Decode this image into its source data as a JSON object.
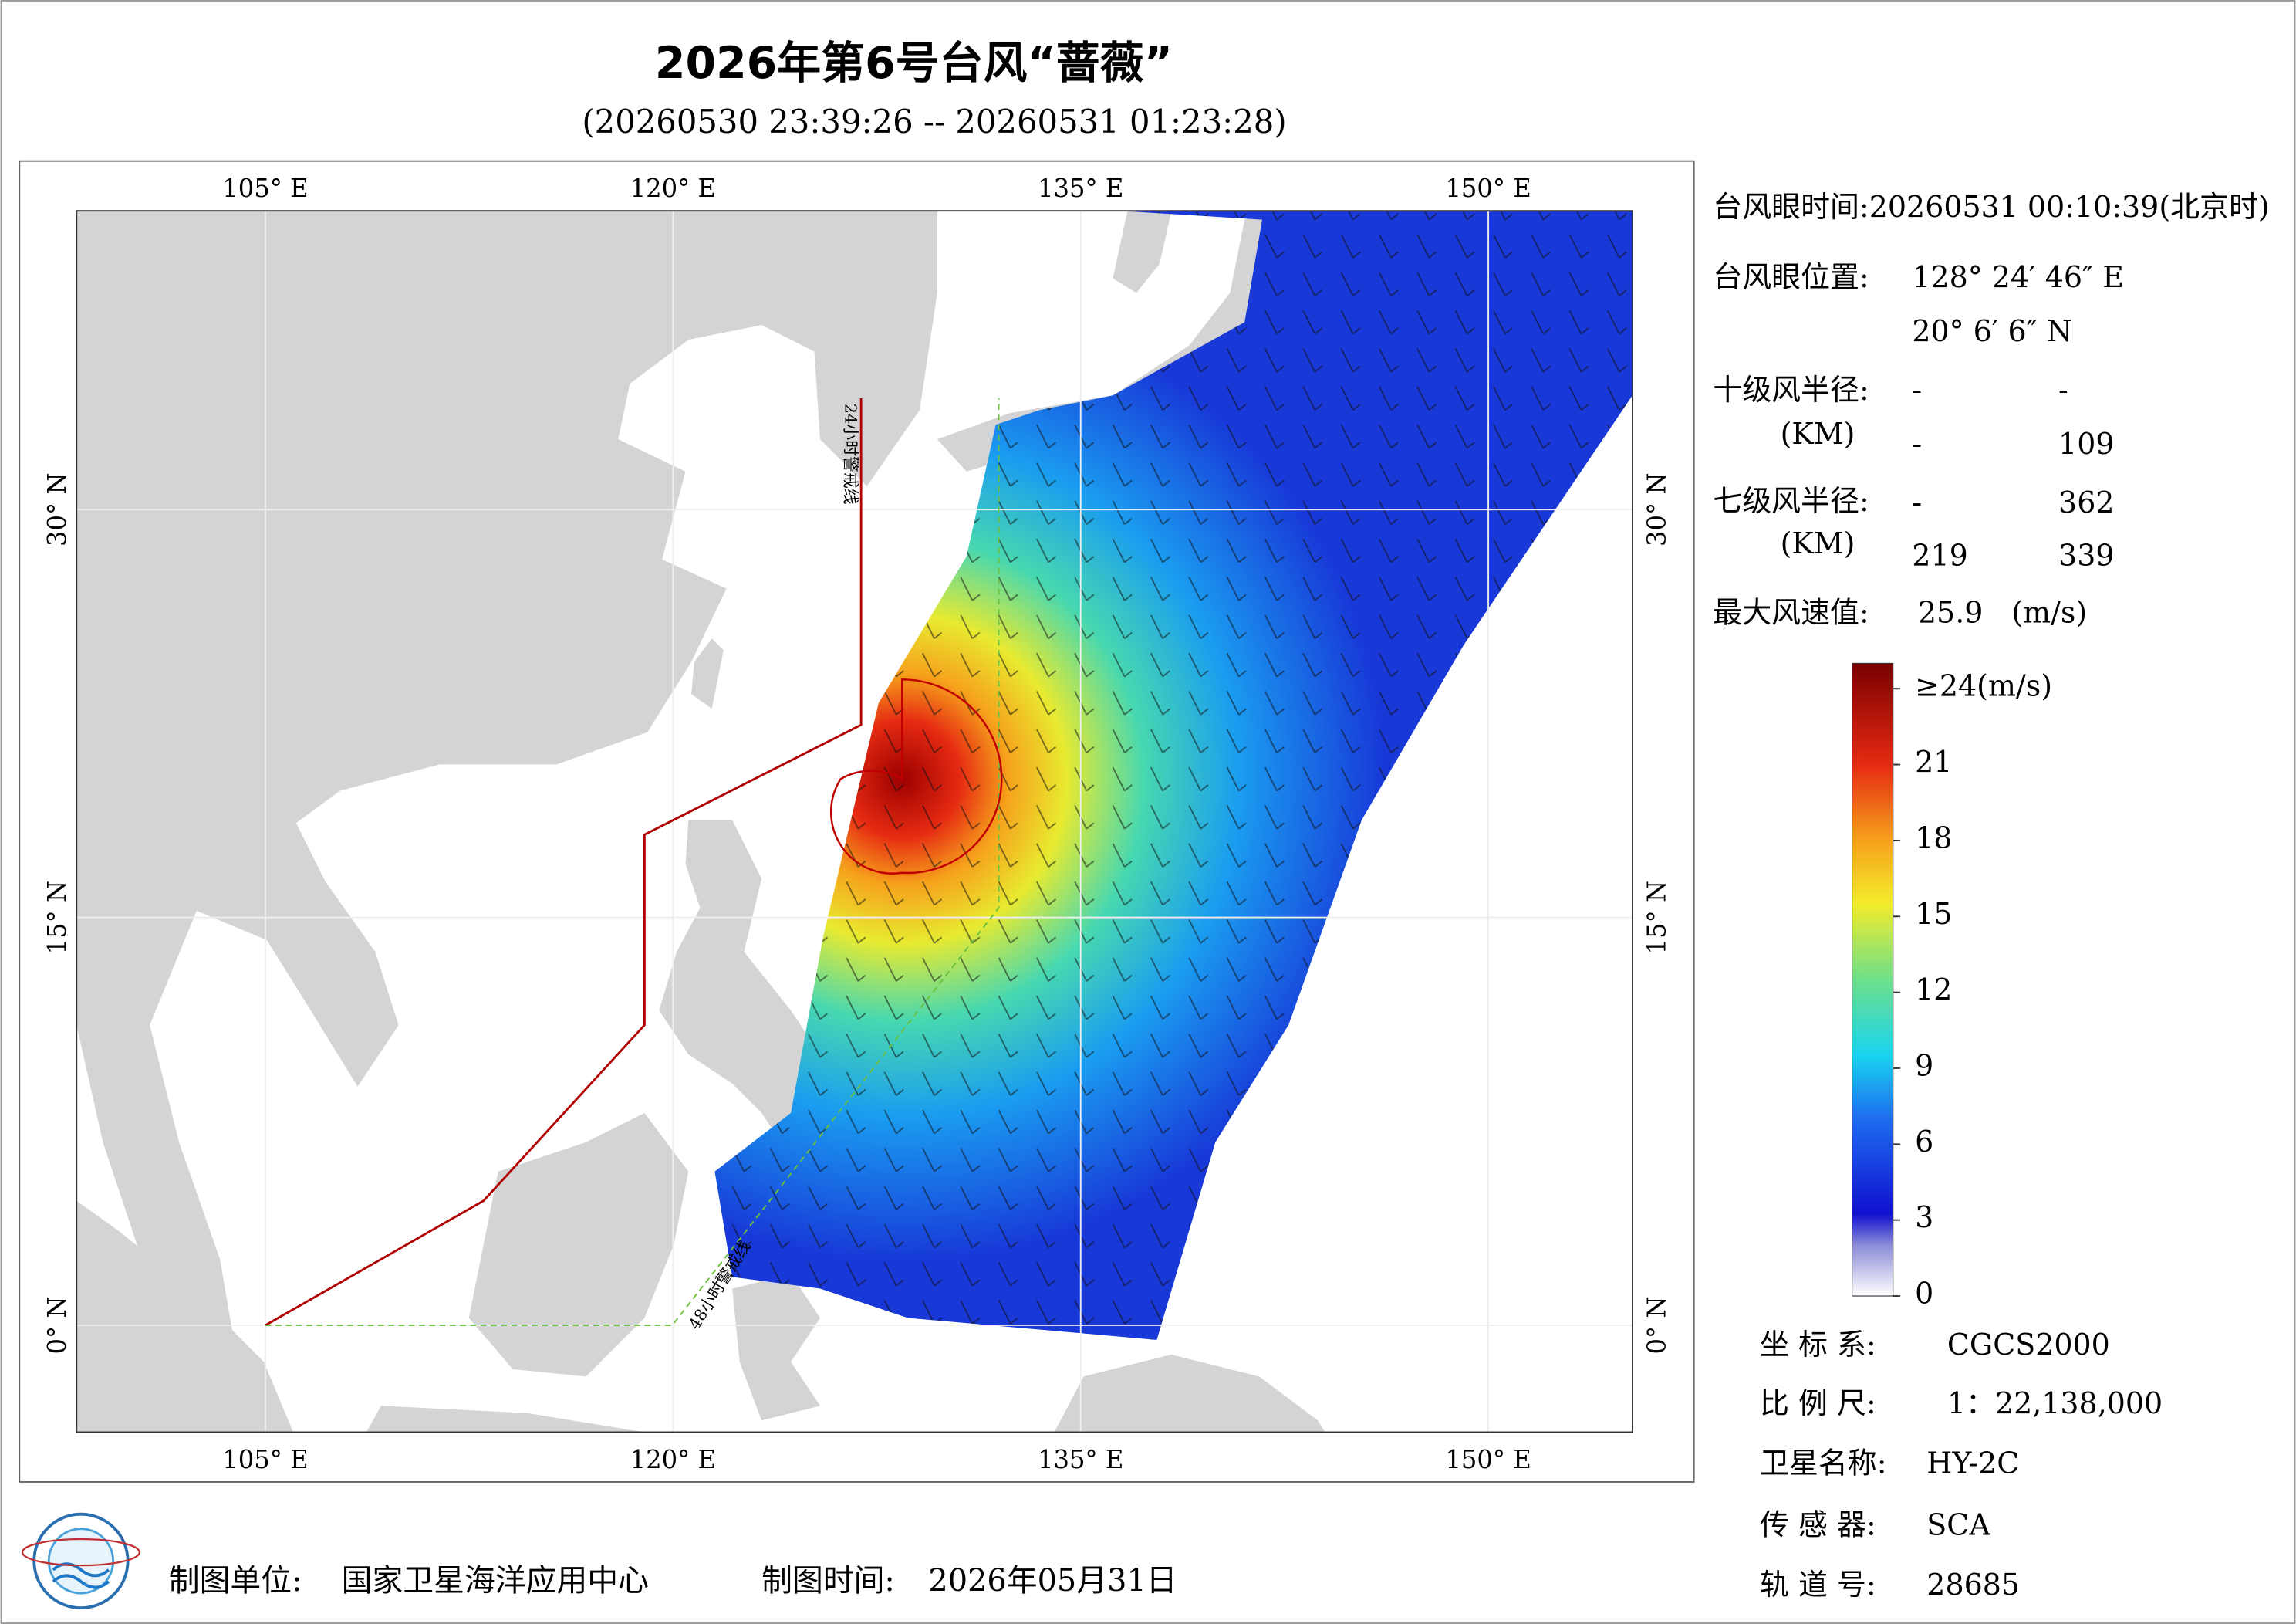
{
  "header": {
    "title": "2026年第6号台风“蔷薇”",
    "subtitle": "(20260530 23:39:26 -- 20260531 01:23:28)"
  },
  "map": {
    "lon_grid": [
      {
        "value": 105,
        "label": "105° E"
      },
      {
        "value": 120,
        "label": "120° E"
      },
      {
        "value": 135,
        "label": "135° E"
      },
      {
        "value": 150,
        "label": "150° E"
      }
    ],
    "lat_grid": [
      {
        "value": 0,
        "label": "0° N"
      },
      {
        "value": 15,
        "label": "15° N"
      },
      {
        "value": 30,
        "label": "30° N"
      }
    ],
    "warning_24h": "24小时警戒线",
    "warning_48h": "48小时警戒线"
  },
  "info": {
    "eye_time": "台风眼时间:20260531 00:10:39(北京时)",
    "eye_position_label": "台风眼位置:",
    "eye_lon": "128° 24′ 46″ E",
    "eye_lat": "20° 6′ 6″ N",
    "r10_label": "十级风半径:",
    "r10_row1": [
      "-",
      "-"
    ],
    "km_label_1": "(KM)",
    "r10_row2": [
      "-",
      109
    ],
    "r7_label": "七级风半径:",
    "r7_row1": [
      "-",
      362
    ],
    "km_label_2": "(KM)",
    "r7_row2": [
      219,
      339
    ],
    "max_wind_label": "最大风速值:",
    "max_wind": 25.9,
    "max_wind_unit": "(m/s)"
  },
  "colorbar": {
    "range": [
      0,
      25
    ],
    "ticks": [
      {
        "value": 24,
        "label": "≥24(m/s)"
      },
      21,
      18,
      15,
      12,
      9,
      6,
      3,
      0
    ]
  },
  "meta": {
    "rows": [
      [
        "坐 标 系:",
        "CGCS2000"
      ],
      [
        "比 例 尺:",
        "1：22,138,000"
      ],
      [
        "卫星名称:",
        "HY-2C"
      ],
      [
        "传 感 器:",
        "SCA"
      ],
      [
        "轨 道 号:",
        28685
      ]
    ]
  },
  "footer": {
    "unit_label": "制图单位:",
    "unit": "国家卫星海洋应用中心",
    "time_label": "制图时间:",
    "time": "2026年05月31日"
  }
}
